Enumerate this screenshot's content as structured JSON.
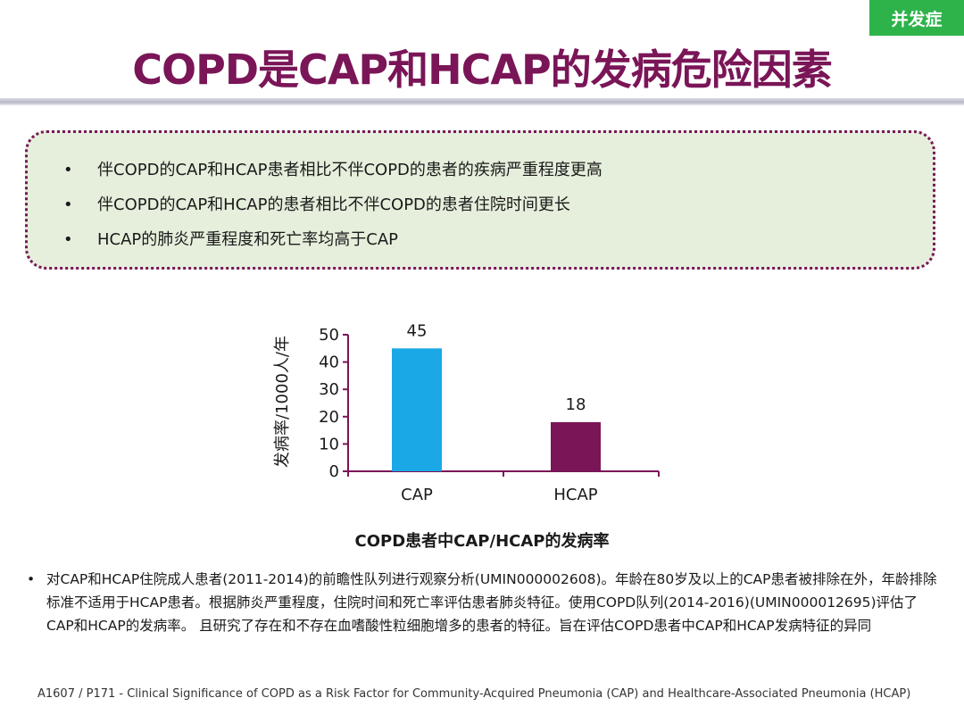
{
  "tag": "并发症",
  "title": "COPD是CAP和HCAP的发病危险因素",
  "summary_bullets": [
    "伴COPD的CAP和HCAP患者相比不伴COPD的患者的疾病严重程度更高",
    "伴COPD的CAP和HCAP的患者相比不伴COPD的患者住院时间更长",
    "HCAP的肺炎严重程度和死亡率均高于CAP"
  ],
  "bullet_char": "•",
  "chart_data": {
    "type": "bar",
    "categories": [
      "CAP",
      "HCAP"
    ],
    "values": [
      45,
      18
    ],
    "data_labels": [
      "45",
      "18"
    ],
    "bar_colors": [
      "#1aa8e6",
      "#7a1557"
    ],
    "title": "COPD患者中CAP/HCAP的发病率",
    "xlabel": "",
    "ylabel": "发病率/1000人/年",
    "ylim": [
      0,
      50
    ],
    "yticks": [
      0,
      10,
      20,
      30,
      40,
      50
    ],
    "grid": false
  },
  "note": "对CAP和HCAP住院成人患者(2011-2014)的前瞻性队列进行观察分析(UMIN000002608)。年龄在80岁及以上的CAP患者被排除在外，年龄排除标准不适用于HCAP患者。根据肺炎严重程度，住院时间和死亡率评估患者肺炎特征。使用COPD队列(2014-2016)(UMIN000012695)评估了CAP和HCAP的发病率。 且研究了存在和不存在血嗜酸性粒细胞增多的患者的特征。旨在评估COPD患者中CAP和HCAP发病特征的异同",
  "citation": "A1607 / P171 - Clinical Significance of COPD as a Risk Factor for Community-Acquired Pneumonia (CAP) and Healthcare-Associated Pneumonia (HCAP)",
  "colors": {
    "accent": "#7a1557",
    "tag_green": "#2db34a",
    "box_fill": "#e6efdc",
    "cap_bar": "#1aa8e6",
    "hcap_bar": "#7a1557"
  }
}
